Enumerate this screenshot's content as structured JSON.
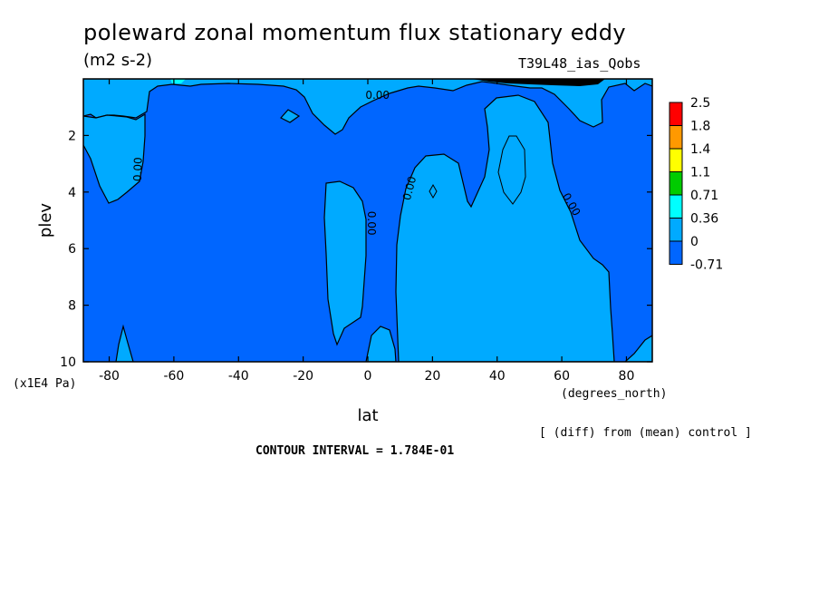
{
  "chart_data": {
    "type": "heatmap",
    "title": "poleward zonal momentum flux stationary eddy",
    "units": "(m2 s-2)",
    "experiment": "T39L48_ias_Qobs",
    "xlabel": "lat",
    "xunits": "(degrees_north)",
    "ylabel": "plev",
    "yunits": "(x1E4 Pa)",
    "xlim": [
      -88,
      88
    ],
    "ylim": [
      10,
      0
    ],
    "x_ticks": [
      "-80",
      "-60",
      "-40",
      "-20",
      "0",
      "20",
      "40",
      "60",
      "80"
    ],
    "y_ticks": [
      "2",
      "4",
      "6",
      "8",
      "10"
    ],
    "contour_labels": [
      "0.00",
      "0.00",
      "0.00",
      "0.00",
      "0.00"
    ],
    "colorbar": {
      "labels": [
        "2.5",
        "1.8",
        "1.4",
        "1.1",
        "0.71",
        "0.36",
        "0",
        "-0.71"
      ],
      "colors": [
        "#ff0000",
        "#ff9900",
        "#ffff00",
        "#00cc00",
        "#00ffff",
        "#00aaff",
        "#0066ff"
      ]
    },
    "fill_colors": {
      "negative": "#0066ff",
      "positive": "#00aaff",
      "high": "#00ffff",
      "peak": "#000000"
    },
    "footnote": "[ (diff) from (mean) control ]",
    "contour_interval": "CONTOUR INTERVAL = 1.784E-01"
  }
}
